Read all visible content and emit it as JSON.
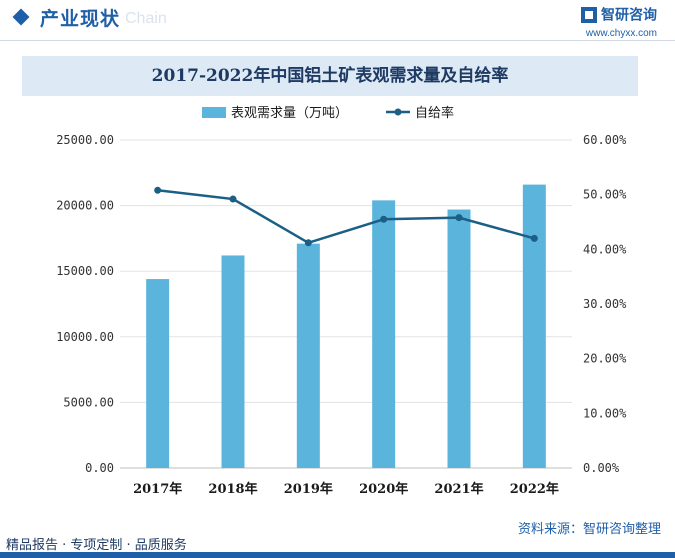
{
  "header": {
    "title": "产业现状",
    "watermark": "Chain",
    "brand_name": "智研咨询",
    "brand_url": "www.chyxx.com"
  },
  "chart_data": {
    "type": "bar",
    "title": "2017-2022年中国铝土矿表观需求量及自给率",
    "categories": [
      "2017年",
      "2018年",
      "2019年",
      "2020年",
      "2021年",
      "2022年"
    ],
    "series": [
      {
        "name": "表观需求量（万吨）",
        "type": "bar",
        "axis": "left",
        "values": [
          14400,
          16200,
          17100,
          20400,
          19700,
          21600
        ],
        "color": "#5bb4dc"
      },
      {
        "name": "自给率",
        "type": "line",
        "axis": "right",
        "values": [
          50.8,
          49.2,
          41.2,
          45.5,
          45.8,
          42.0
        ],
        "color": "#1b5f86"
      }
    ],
    "y_left": {
      "min": 0,
      "max": 25000,
      "ticks": [
        0,
        5000,
        10000,
        15000,
        20000,
        25000
      ],
      "tick_labels": [
        "0.00",
        "5000.00",
        "10000.00",
        "15000.00",
        "20000.00",
        "25000.00"
      ]
    },
    "y_right": {
      "min": 0,
      "max": 60,
      "ticks": [
        0,
        10,
        20,
        30,
        40,
        50,
        60
      ],
      "tick_labels": [
        "0.00%",
        "10.00%",
        "20.00%",
        "30.00%",
        "40.00%",
        "50.00%",
        "60.00%"
      ]
    },
    "grid": true,
    "legend": "top-center"
  },
  "footer": {
    "tagline": "精品报告 · 专项定制 · 品质服务",
    "source": "资料来源：智研咨询整理"
  }
}
